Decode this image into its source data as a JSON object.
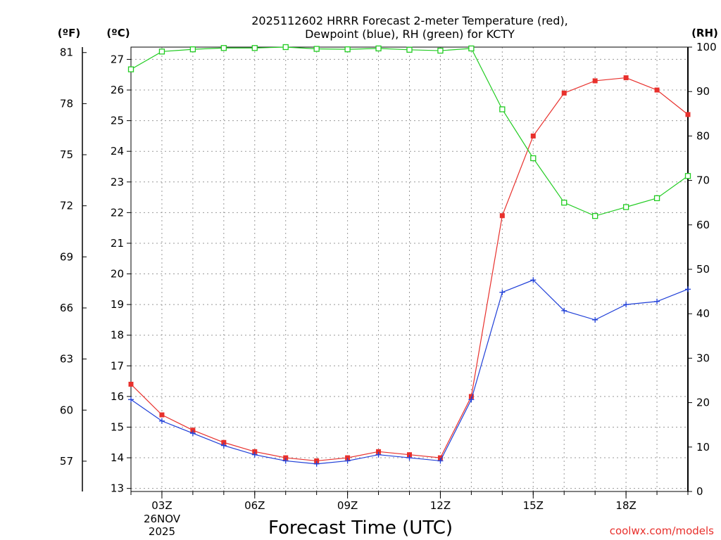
{
  "chart_data": {
    "type": "line",
    "title_line1": "2025112602 HRRR Forecast 2-meter Temperature (red),",
    "title_line2": "Dewpoint (blue), RH (green) for KCTY",
    "xlabel": "Forecast Time (UTC)",
    "credit": "coolwx.com/models",
    "unit_f": "(ºF)",
    "unit_c": "(ºC)",
    "unit_rh": "(RH)",
    "x_hours": [
      2,
      3,
      4,
      5,
      6,
      7,
      8,
      9,
      10,
      11,
      12,
      13,
      14,
      15,
      16,
      17,
      18,
      19,
      20
    ],
    "x_tick_labels": [
      {
        "hour": 3,
        "label": "03Z"
      },
      {
        "hour": 6,
        "label": "06Z"
      },
      {
        "hour": 9,
        "label": "09Z"
      },
      {
        "hour": 12,
        "label": "12Z"
      },
      {
        "hour": 15,
        "label": "15Z"
      },
      {
        "hour": 18,
        "label": "18Z"
      }
    ],
    "date_label_line1": "26NOV",
    "date_label_line2": "2025",
    "ylim_c": [
      12.9,
      27.4
    ],
    "ylim_rh": [
      0,
      100
    ],
    "yticks_c": [
      13,
      14,
      15,
      16,
      17,
      18,
      19,
      20,
      21,
      22,
      23,
      24,
      25,
      26,
      27
    ],
    "yticks_f": [
      57,
      60,
      63,
      66,
      69,
      72,
      75,
      78,
      81
    ],
    "yticks_rh": [
      0,
      10,
      20,
      30,
      40,
      50,
      60,
      70,
      80,
      90,
      100
    ],
    "series": [
      {
        "name": "Temperature",
        "color": "#e8302c",
        "marker": "filled-square",
        "values": [
          16.4,
          15.4,
          14.9,
          14.5,
          14.2,
          14.0,
          13.9,
          14.0,
          14.2,
          14.1,
          14.0,
          16.0,
          21.9,
          24.5,
          25.9,
          26.3,
          26.4,
          26.0,
          25.2
        ]
      },
      {
        "name": "Dewpoint",
        "color": "#1f3fd8",
        "marker": "plus",
        "values": [
          15.9,
          15.2,
          14.8,
          14.4,
          14.1,
          13.9,
          13.8,
          13.9,
          14.1,
          14.0,
          13.9,
          15.9,
          19.4,
          19.8,
          18.8,
          18.5,
          19.0,
          19.1,
          19.5
        ]
      },
      {
        "name": "RH",
        "color": "#22cc22",
        "marker": "hollow-square",
        "axis": "rh",
        "values": [
          95,
          99,
          99.5,
          99.8,
          99.8,
          100,
          99.6,
          99.5,
          99.7,
          99.4,
          99.2,
          99.7,
          86,
          75,
          65,
          62,
          64,
          66,
          71
        ]
      }
    ]
  }
}
